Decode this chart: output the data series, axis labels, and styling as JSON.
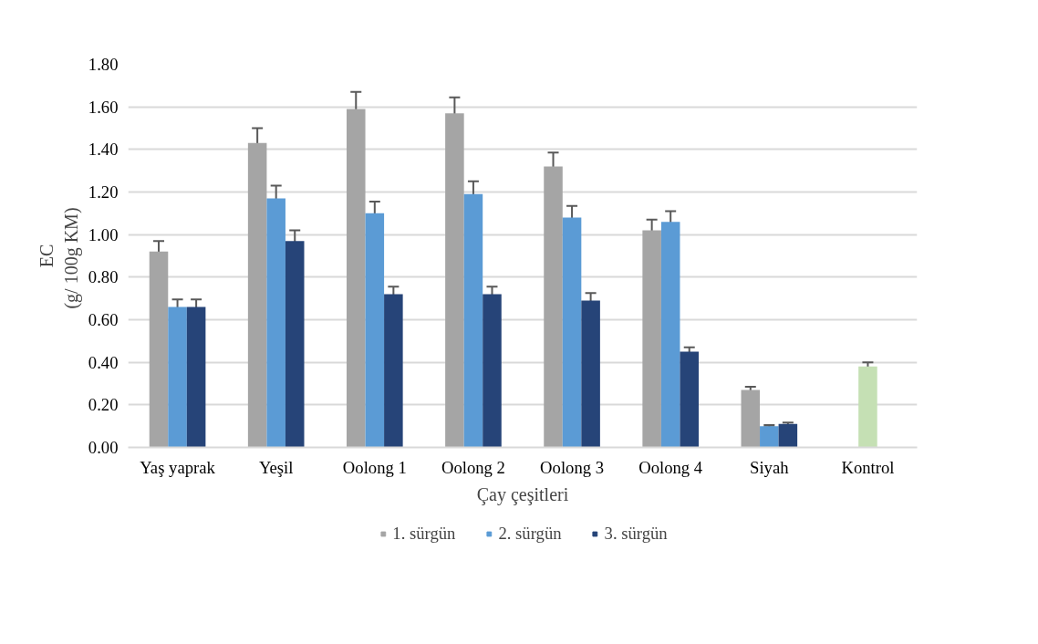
{
  "chart_data": {
    "type": "bar",
    "xlabel": "Çay çeşitleri",
    "ylabel": "EC (g/ 100g  KM)",
    "categories": [
      "Yaş yaprak",
      "Yeşil",
      "Oolong 1",
      "Oolong 2",
      "Oolong 3",
      "Oolong 4",
      "Siyah",
      "Kontrol"
    ],
    "series": [
      {
        "name": "1. sürgün",
        "color": "#a5a5a5",
        "values": [
          0.92,
          1.43,
          1.59,
          1.57,
          1.32,
          1.02,
          0.27,
          null
        ],
        "errors": [
          0.05,
          0.07,
          0.08,
          0.075,
          0.065,
          0.05,
          0.015,
          null
        ]
      },
      {
        "name": "2. sürgün",
        "color": "#5b9bd5",
        "colors": [
          "#5b9bd5",
          "#5b9bd5",
          "#5b9bd5",
          "#5b9bd5",
          "#5b9bd5",
          "#5b9bd5",
          "#5b9bd5",
          "#c5e0b4"
        ],
        "values": [
          0.66,
          1.17,
          1.1,
          1.19,
          1.08,
          1.06,
          0.1,
          0.38
        ],
        "errors": [
          0.035,
          0.06,
          0.055,
          0.06,
          0.055,
          0.05,
          0.005,
          0.02
        ]
      },
      {
        "name": "3. sürgün",
        "color": "#264478",
        "values": [
          0.66,
          0.97,
          0.72,
          0.72,
          0.69,
          0.45,
          0.11,
          null
        ],
        "errors": [
          0.035,
          0.05,
          0.035,
          0.035,
          0.035,
          0.02,
          0.007,
          null
        ]
      }
    ],
    "ylim": [
      0,
      1.8
    ],
    "yticks": [
      {
        "value": 0,
        "label": "0.00"
      },
      {
        "value": 0.2,
        "label": "0.20"
      },
      {
        "value": 0.4,
        "label": "0.40"
      },
      {
        "value": 0.6,
        "label": "0.60"
      },
      {
        "value": 0.8,
        "label": "0.80"
      },
      {
        "value": 1.0,
        "label": "1.00"
      },
      {
        "value": 1.2,
        "label": "1.20"
      },
      {
        "value": 1.4,
        "label": "1.40"
      },
      {
        "value": 1.6,
        "label": "1.60"
      },
      {
        "value": 1.8,
        "label": "1.80"
      }
    ],
    "grid": "y",
    "legend": "bottom"
  }
}
